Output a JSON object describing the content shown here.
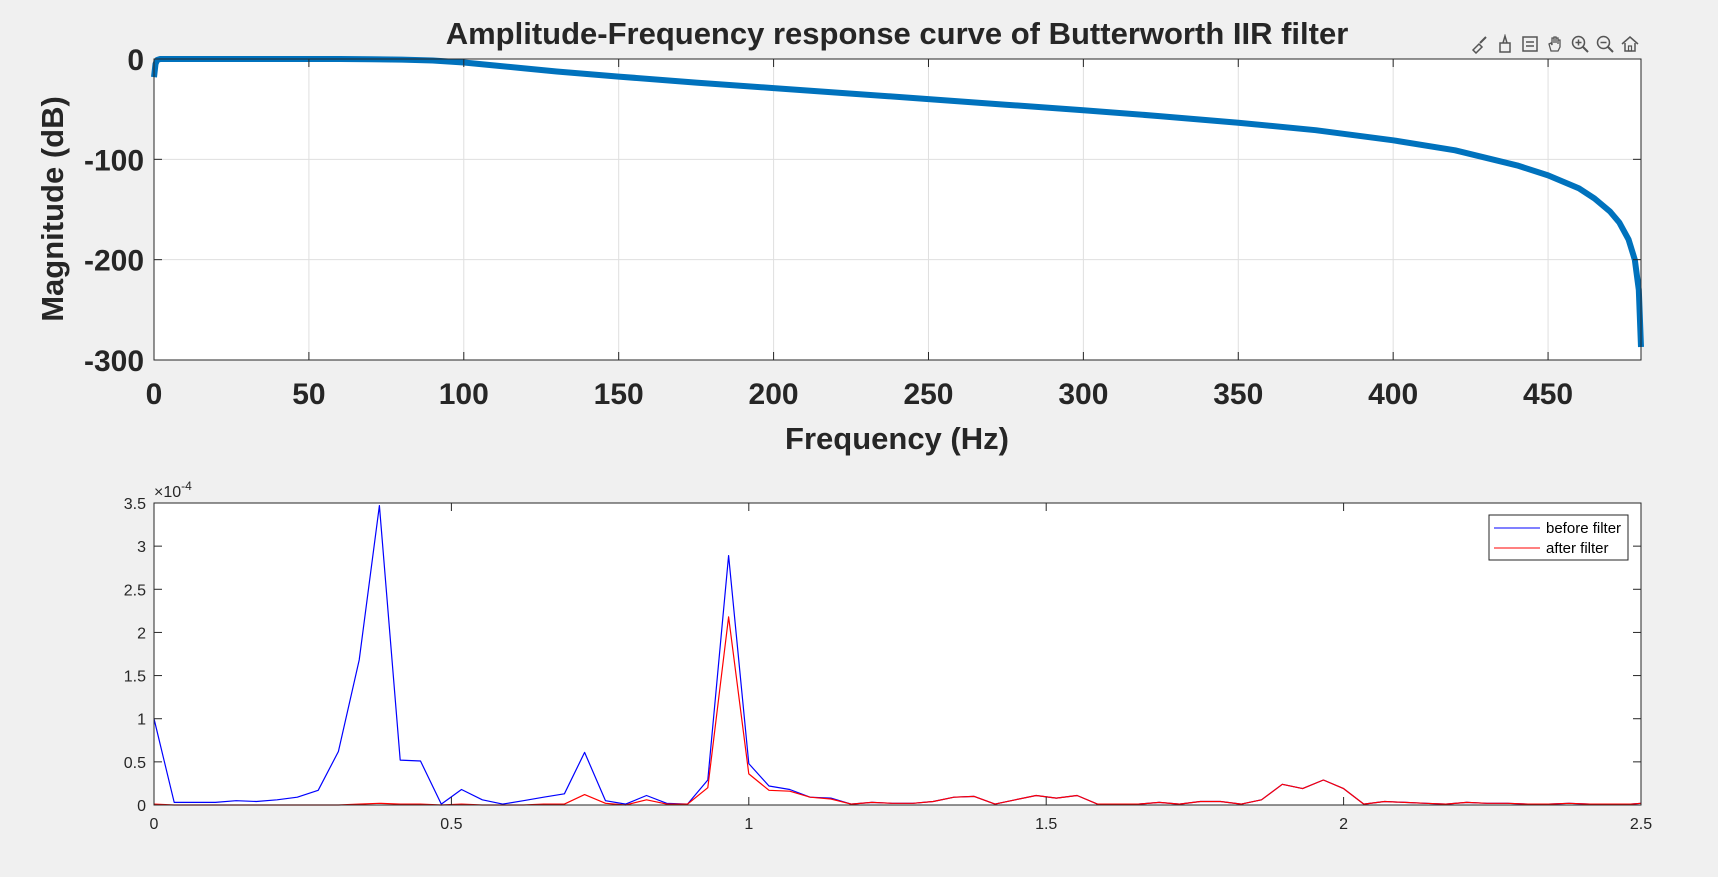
{
  "toolbar": {
    "icons": [
      "brush-icon",
      "data-tip-icon",
      "legend-icon",
      "pan-icon",
      "zoom-in-icon",
      "zoom-out-icon",
      "home-icon"
    ]
  },
  "chart_data": [
    {
      "type": "line",
      "title": "Amplitude-Frequency response curve of Butterworth IIR filter",
      "xlabel": "Frequency (Hz)",
      "ylabel": "Magnitude (dB)",
      "xlim": [
        0,
        480
      ],
      "ylim": [
        -300,
        0
      ],
      "xticks": [
        0,
        50,
        100,
        150,
        200,
        250,
        300,
        350,
        400,
        450
      ],
      "xtick_labels": [
        "0",
        "50",
        "100",
        "150",
        "200",
        "250",
        "300",
        "350",
        "400",
        "450"
      ],
      "yticks": [
        0,
        -100,
        -200,
        -300
      ],
      "ytick_labels": [
        "0",
        "-100",
        "-200",
        "-300"
      ],
      "grid": true,
      "color": "#0072bd",
      "series": [
        {
          "name": "magnitude",
          "x": [
            0,
            0.5,
            1,
            2,
            5,
            20,
            40,
            60,
            70,
            80,
            90,
            100,
            110,
            120,
            130,
            150,
            175,
            200,
            225,
            250,
            275,
            300,
            325,
            350,
            375,
            400,
            420,
            440,
            450,
            460,
            465,
            470,
            473,
            476,
            478,
            479.3,
            480
          ],
          "y": [
            -18,
            -5,
            -1,
            0,
            0,
            0,
            0,
            0,
            -0.2,
            -0.6,
            -1.5,
            -3.5,
            -6.5,
            -9.5,
            -12.5,
            -17.5,
            -23.5,
            -29,
            -34.5,
            -40,
            -45.5,
            -51,
            -57,
            -63.5,
            -71,
            -81,
            -91,
            -106,
            -116,
            -129,
            -139,
            -152,
            -163,
            -180,
            -200,
            -230,
            -287
          ]
        }
      ]
    },
    {
      "type": "line",
      "title": "",
      "xlabel": "",
      "ylabel": "",
      "xlim": [
        0,
        2.5
      ],
      "ylim": [
        0,
        3.5
      ],
      "xticks": [
        0,
        0.5,
        1,
        1.5,
        2,
        2.5
      ],
      "xtick_labels": [
        "0",
        "0.5",
        "1",
        "1.5",
        "2",
        "2.5"
      ],
      "yticks": [
        0,
        0.5,
        1,
        1.5,
        2,
        2.5,
        3,
        3.5
      ],
      "ytick_labels": [
        "0",
        "0.5",
        "1",
        "1.5",
        "2",
        "2.5",
        "3",
        "3.5"
      ],
      "y_exponent": {
        "base": "×10",
        "power": "-4"
      },
      "legend": {
        "location": "top-right"
      },
      "series": [
        {
          "name": "before filter",
          "color": "#0000ff",
          "x": [
            0,
            0.034,
            0.069,
            0.103,
            0.138,
            0.172,
            0.207,
            0.241,
            0.276,
            0.31,
            0.345,
            0.379,
            0.414,
            0.448,
            0.483,
            0.517,
            0.552,
            0.586,
            0.621,
            0.655,
            0.69,
            0.724,
            0.759,
            0.793,
            0.828,
            0.862,
            0.897,
            0.931,
            0.966,
            1.0,
            1.034,
            1.069,
            1.103,
            1.138,
            1.172,
            1.207,
            1.241,
            1.276,
            1.31,
            1.345,
            1.379,
            1.414,
            1.448,
            1.483,
            1.517,
            1.552,
            1.586,
            1.621,
            1.655,
            1.69,
            1.724,
            1.759,
            1.793,
            1.828,
            1.862,
            1.897,
            1.931,
            1.966,
            2.0,
            2.034,
            2.069,
            2.103,
            2.138,
            2.172,
            2.207,
            2.241,
            2.276,
            2.31,
            2.345,
            2.379,
            2.414,
            2.448,
            2.483,
            2.5
          ],
          "y": [
            1.0,
            0.03,
            0.03,
            0.03,
            0.05,
            0.04,
            0.06,
            0.09,
            0.17,
            0.62,
            1.68,
            3.47,
            0.52,
            0.51,
            0.01,
            0.18,
            0.06,
            0.01,
            0.05,
            0.09,
            0.13,
            0.61,
            0.05,
            0.01,
            0.11,
            0.02,
            0.01,
            0.29,
            2.89,
            0.48,
            0.22,
            0.18,
            0.09,
            0.08,
            0.01,
            0.03,
            0.02,
            0.02,
            0.04,
            0.09,
            0.1,
            0.01,
            0.06,
            0.11,
            0.08,
            0.11,
            0.01,
            0.01,
            0.01,
            0.03,
            0.01,
            0.04,
            0.04,
            0.01,
            0.06,
            0.24,
            0.19,
            0.29,
            0.19,
            0.01,
            0.04,
            0.03,
            0.02,
            0.01,
            0.03,
            0.02,
            0.02,
            0.01,
            0.01,
            0.02,
            0.01,
            0.01,
            0.01,
            0.02
          ]
        },
        {
          "name": "after filter",
          "color": "#ff0000",
          "x": [
            0,
            0.034,
            0.069,
            0.103,
            0.138,
            0.172,
            0.207,
            0.241,
            0.276,
            0.31,
            0.345,
            0.379,
            0.414,
            0.448,
            0.483,
            0.517,
            0.552,
            0.586,
            0.621,
            0.655,
            0.69,
            0.724,
            0.759,
            0.793,
            0.828,
            0.862,
            0.897,
            0.931,
            0.966,
            1.0,
            1.034,
            1.069,
            1.103,
            1.138,
            1.172,
            1.207,
            1.241,
            1.276,
            1.31,
            1.345,
            1.379,
            1.414,
            1.448,
            1.483,
            1.517,
            1.552,
            1.586,
            1.621,
            1.655,
            1.69,
            1.724,
            1.759,
            1.793,
            1.828,
            1.862,
            1.897,
            1.931,
            1.966,
            2.0,
            2.034,
            2.069,
            2.103,
            2.138,
            2.172,
            2.207,
            2.241,
            2.276,
            2.31,
            2.345,
            2.379,
            2.414,
            2.448,
            2.483,
            2.5
          ],
          "y": [
            0.01,
            0.0,
            0.0,
            0.0,
            0.0,
            0.0,
            0.0,
            0.0,
            0.0,
            0.0,
            0.01,
            0.02,
            0.01,
            0.01,
            0.0,
            0.01,
            0.0,
            0.0,
            0.0,
            0.01,
            0.01,
            0.12,
            0.02,
            0.0,
            0.06,
            0.01,
            0.01,
            0.2,
            2.18,
            0.36,
            0.17,
            0.16,
            0.09,
            0.07,
            0.01,
            0.03,
            0.02,
            0.02,
            0.04,
            0.09,
            0.1,
            0.01,
            0.06,
            0.11,
            0.08,
            0.11,
            0.01,
            0.01,
            0.01,
            0.03,
            0.01,
            0.04,
            0.04,
            0.01,
            0.06,
            0.24,
            0.19,
            0.29,
            0.19,
            0.01,
            0.04,
            0.03,
            0.02,
            0.01,
            0.03,
            0.02,
            0.02,
            0.01,
            0.01,
            0.02,
            0.01,
            0.01,
            0.01,
            0.02
          ]
        }
      ]
    }
  ]
}
